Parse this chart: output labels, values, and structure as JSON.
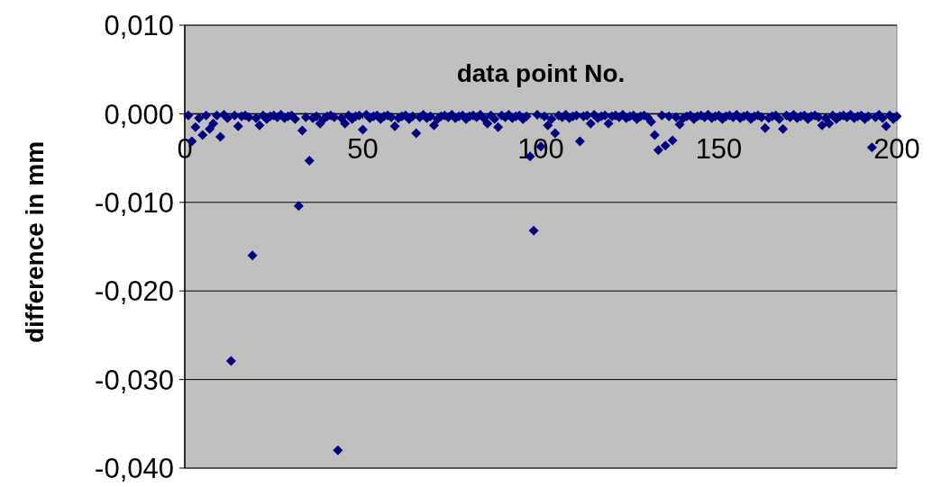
{
  "chart_data": {
    "type": "scatter",
    "xlabel": "data point No.",
    "ylabel": "difference in mm",
    "xlim": [
      0,
      200
    ],
    "xticks": [
      0,
      50,
      100,
      150,
      200
    ],
    "ylim": [
      -0.04,
      0.01
    ],
    "yticks": [
      {
        "value": -0.04,
        "label": "-0,040"
      },
      {
        "value": -0.03,
        "label": "-0,030"
      },
      {
        "value": -0.02,
        "label": "-0,020"
      },
      {
        "value": -0.01,
        "label": "-0,010"
      },
      {
        "value": 0,
        "label": "0,000"
      },
      {
        "value": 0.01,
        "label": "0,010"
      }
    ],
    "grid": "y",
    "marker": "diamond",
    "series": [
      {
        "color": "#000080",
        "x": [
          1,
          2,
          3,
          4,
          5,
          6,
          7,
          8,
          9,
          10,
          11,
          12,
          13,
          14,
          15,
          16,
          17,
          18,
          19,
          20,
          21,
          22,
          23,
          24,
          25,
          26,
          27,
          28,
          29,
          30,
          31,
          32,
          33,
          34,
          35,
          36,
          37,
          38,
          39,
          40,
          41,
          42,
          43,
          44,
          45,
          46,
          47,
          48,
          49,
          50,
          51,
          52,
          53,
          54,
          55,
          56,
          57,
          58,
          59,
          60,
          61,
          62,
          63,
          64,
          65,
          66,
          67,
          68,
          69,
          70,
          71,
          72,
          73,
          74,
          75,
          76,
          77,
          78,
          79,
          80,
          81,
          82,
          83,
          84,
          85,
          86,
          87,
          88,
          89,
          90,
          91,
          92,
          93,
          94,
          95,
          96,
          97,
          98,
          99,
          100,
          101,
          102,
          103,
          104,
          105,
          106,
          107,
          108,
          109,
          110,
          111,
          112,
          113,
          114,
          115,
          116,
          117,
          118,
          119,
          120,
          121,
          122,
          123,
          124,
          125,
          126,
          127,
          128,
          129,
          130,
          131,
          132,
          133,
          134,
          135,
          136,
          137,
          138,
          139,
          140,
          141,
          142,
          143,
          144,
          145,
          146,
          147,
          148,
          149,
          150,
          151,
          152,
          153,
          154,
          155,
          156,
          157,
          158,
          159,
          160,
          161,
          162,
          163,
          164,
          165,
          166,
          167,
          168,
          169,
          170,
          171,
          172,
          173,
          174,
          175,
          176,
          177,
          178,
          179,
          180,
          181,
          182,
          183,
          184,
          185,
          186,
          187,
          188,
          189,
          190,
          191,
          192,
          193,
          194,
          195,
          196,
          197,
          198,
          199,
          200
        ],
        "values": [
          -0.0002,
          -0.0031,
          -0.0015,
          -0.0005,
          -0.0024,
          -0.0002,
          -0.0017,
          -0.0011,
          -0.0002,
          -0.0026,
          -0.0001,
          -0.0005,
          -0.0279,
          -0.0002,
          -0.0014,
          -0.0003,
          -0.0002,
          -0.0004,
          -0.016,
          -0.0005,
          -0.0013,
          -0.0002,
          -0.0006,
          -0.0003,
          -0.0002,
          -0.0004,
          -0.0001,
          -0.0005,
          -0.0003,
          -0.0002,
          -0.0006,
          -0.0104,
          -0.0019,
          -0.0004,
          -0.0053,
          -0.0005,
          -0.0003,
          -0.0011,
          -0.0006,
          -0.0003,
          -0.0002,
          -0.0004,
          -0.038,
          -0.0005,
          -0.0011,
          -0.0002,
          -0.0006,
          -0.0003,
          -0.0002,
          -0.0018,
          -0.0001,
          -0.0005,
          -0.0003,
          -0.0002,
          -0.0006,
          -0.0003,
          -0.0002,
          -0.0004,
          -0.0014,
          -0.0005,
          -0.0003,
          -0.0002,
          -0.0006,
          -0.0003,
          -0.0022,
          -0.0004,
          -0.0001,
          -0.0005,
          -0.0003,
          -0.0013,
          -0.0006,
          -0.0003,
          -0.0002,
          -0.0004,
          -0.0001,
          -0.0005,
          -0.0003,
          -0.0002,
          -0.0006,
          -0.0003,
          -0.0002,
          -0.0004,
          -0.0001,
          -0.0005,
          -0.0011,
          -0.0002,
          -0.0006,
          -0.0015,
          -0.0002,
          -0.0004,
          -0.0001,
          -0.0005,
          -0.0003,
          -0.0002,
          -0.0006,
          -0.0003,
          -0.0048,
          -0.0132,
          -0.0001,
          -0.0037,
          -0.0003,
          -0.0013,
          -0.0006,
          -0.0022,
          -0.0002,
          -0.0004,
          -0.0001,
          -0.0005,
          -0.0003,
          -0.0002,
          -0.0031,
          -0.0003,
          -0.0002,
          -0.0011,
          -0.0001,
          -0.0005,
          -0.0003,
          -0.0002,
          -0.0011,
          -0.0003,
          -0.0002,
          -0.0004,
          -0.0001,
          -0.0005,
          -0.0003,
          -0.0002,
          -0.0006,
          -0.0003,
          -0.0002,
          -0.0004,
          -0.0009,
          -0.0024,
          -0.0041,
          -0.0002,
          -0.0036,
          -0.0003,
          -0.003,
          -0.0004,
          -0.0012,
          -0.0005,
          -0.0003,
          -0.0002,
          -0.0006,
          -0.0003,
          -0.0002,
          -0.0004,
          -0.0001,
          -0.0005,
          -0.0003,
          -0.0002,
          -0.0006,
          -0.0003,
          -0.0002,
          -0.0004,
          -0.0001,
          -0.0005,
          -0.0003,
          -0.0002,
          -0.0006,
          -0.0003,
          -0.0002,
          -0.0004,
          -0.0016,
          -0.0005,
          -0.0003,
          -0.0002,
          -0.0006,
          -0.0017,
          -0.0002,
          -0.0004,
          -0.0001,
          -0.0005,
          -0.0003,
          -0.0002,
          -0.0006,
          -0.0003,
          -0.0002,
          -0.0004,
          -0.0013,
          -0.0005,
          -0.0011,
          -0.0002,
          -0.0006,
          -0.0003,
          -0.0002,
          -0.0004,
          -0.0001,
          -0.0005,
          -0.0003,
          -0.0002,
          -0.0006,
          -0.0003,
          -0.0038,
          -0.0004,
          -0.0001,
          -0.0005,
          -0.0014,
          -0.0002,
          -0.0006,
          -0.0003
        ]
      }
    ]
  }
}
